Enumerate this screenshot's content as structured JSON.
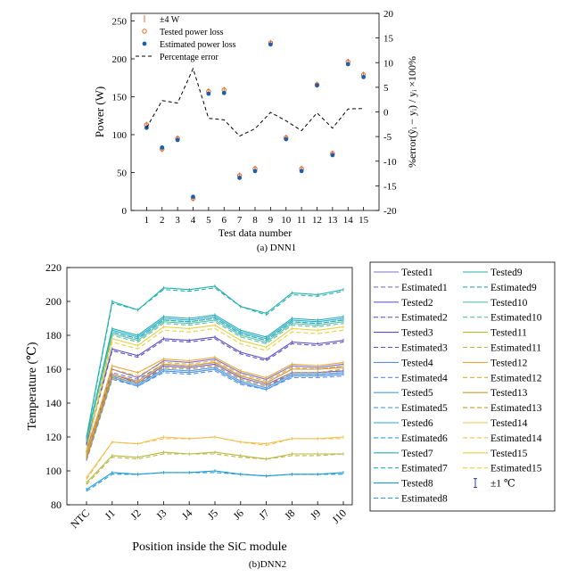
{
  "chart_data": [
    {
      "type": "scatter",
      "caption": "(a) DNN1",
      "xlabel": "Test data number",
      "ylabel": "Power (W)",
      "y2label": "%error(ŷᵢ − yᵢ) / yᵢ ×100%",
      "x": [
        1,
        2,
        3,
        4,
        5,
        6,
        7,
        8,
        9,
        10,
        11,
        12,
        13,
        14,
        15
      ],
      "xlim": [
        0,
        16
      ],
      "ylim": [
        0,
        260
      ],
      "y2lim": [
        -20,
        20
      ],
      "yticks": [
        0,
        50,
        100,
        150,
        200,
        250
      ],
      "y2ticks": [
        -20,
        -15,
        -10,
        -5,
        0,
        5,
        10,
        15,
        20
      ],
      "legend": {
        "placement": "top-left",
        "entries": [
          "±4 W",
          "Tested power loss",
          "Estimated power loss",
          "Percentage error"
        ]
      },
      "errorbar": 4,
      "series": [
        {
          "name": "Tested power loss",
          "values": [
            113,
            81,
            95,
            16,
            157,
            159,
            46,
            55,
            221,
            96,
            55,
            166,
            75,
            196,
            179
          ]
        },
        {
          "name": "Estimated power loss",
          "values": [
            109,
            83,
            93,
            18,
            154,
            155,
            43,
            52,
            219,
            94,
            52,
            165,
            73,
            193,
            176
          ]
        },
        {
          "name": "Percentage error",
          "axis": "right",
          "values": [
            -3.2,
            2.3,
            1.8,
            8.8,
            -1.3,
            -1.6,
            -4.9,
            -3.4,
            -0.1,
            -1.8,
            -3.8,
            -0.2,
            -3.3,
            0.6,
            0.7
          ]
        }
      ]
    },
    {
      "type": "line",
      "caption": "(b)DNN2",
      "xlabel": "Position inside the SiC module",
      "ylabel": "Temperature (℃)",
      "categories": [
        "NTC",
        "J1",
        "J2",
        "J3",
        "J4",
        "J5",
        "J6",
        "J7",
        "J8",
        "J9",
        "J10"
      ],
      "ylim": [
        80,
        220
      ],
      "yticks": [
        80,
        100,
        120,
        140,
        160,
        180,
        200,
        220
      ],
      "errorbar_label": "±1 ℃",
      "series": [
        {
          "name": "Tested1",
          "color": "#7b6fd0",
          "values": [
            112,
            160,
            155,
            165,
            164,
            166,
            158,
            154,
            162,
            161,
            163
          ]
        },
        {
          "name": "Estimated1",
          "color": "#7b6fd0",
          "values": [
            111,
            158,
            154,
            163,
            162,
            164,
            156,
            152,
            160,
            160,
            162
          ]
        },
        {
          "name": "Tested2",
          "color": "#6a5cc8",
          "values": [
            110,
            157,
            152,
            162,
            161,
            163,
            155,
            151,
            158,
            158,
            159
          ]
        },
        {
          "name": "Estimated2",
          "color": "#6a5cc8",
          "values": [
            109,
            156,
            151,
            161,
            160,
            162,
            154,
            150,
            157,
            157,
            158
          ]
        },
        {
          "name": "Tested3",
          "color": "#5a4fc0",
          "values": [
            116,
            172,
            168,
            178,
            177,
            179,
            170,
            166,
            176,
            175,
            177
          ]
        },
        {
          "name": "Estimated3",
          "color": "#5a4fc0",
          "values": [
            115,
            171,
            167,
            177,
            176,
            178,
            169,
            165,
            175,
            174,
            176
          ]
        },
        {
          "name": "Tested4",
          "color": "#5b8ee0",
          "values": [
            107,
            155,
            150,
            159,
            158,
            160,
            152,
            148,
            156,
            156,
            157
          ]
        },
        {
          "name": "Estimated4",
          "color": "#5b8ee0",
          "values": [
            106,
            154,
            150,
            158,
            157,
            159,
            151,
            148,
            155,
            155,
            156
          ]
        },
        {
          "name": "Tested5",
          "color": "#4a9be8",
          "values": [
            108,
            156,
            151,
            160,
            159,
            161,
            153,
            149,
            157,
            157,
            158
          ]
        },
        {
          "name": "Estimated5",
          "color": "#4a9be8",
          "values": [
            107,
            155,
            150,
            159,
            158,
            160,
            152,
            148,
            156,
            156,
            157
          ]
        },
        {
          "name": "Tested6",
          "color": "#2aa6e0",
          "values": [
            118,
            183,
            179,
            190,
            189,
            191,
            182,
            178,
            189,
            188,
            190
          ]
        },
        {
          "name": "Estimated6",
          "color": "#2aa6e0",
          "values": [
            117,
            182,
            178,
            189,
            188,
            190,
            181,
            177,
            188,
            187,
            189
          ]
        },
        {
          "name": "Tested7",
          "color": "#1fb0b0",
          "values": [
            120,
            200,
            195,
            208,
            207,
            209,
            197,
            193,
            205,
            204,
            207
          ]
        },
        {
          "name": "Estimated7",
          "color": "#1fb0b0",
          "values": [
            119,
            199,
            195,
            207,
            206,
            208,
            197,
            192,
            204,
            203,
            206
          ]
        },
        {
          "name": "Tested8",
          "color": "#1a9ad6",
          "values": [
            89,
            99,
            98,
            99,
            99,
            100,
            98,
            97,
            98,
            98,
            99
          ]
        },
        {
          "name": "Estimated8",
          "color": "#1a9ad6",
          "values": [
            88,
            98,
            98,
            99,
            99,
            99,
            98,
            97,
            98,
            98,
            98
          ]
        },
        {
          "name": "Tested9",
          "color": "#20b0a0",
          "values": [
            119,
            184,
            180,
            191,
            190,
            192,
            183,
            179,
            190,
            189,
            191
          ]
        },
        {
          "name": "Estimated9",
          "color": "#20b0a0",
          "values": [
            118,
            182,
            178,
            189,
            188,
            190,
            181,
            177,
            188,
            187,
            189
          ]
        },
        {
          "name": "Tested10",
          "color": "#5cc0a8",
          "values": [
            118,
            181,
            177,
            188,
            187,
            189,
            180,
            176,
            187,
            186,
            188
          ]
        },
        {
          "name": "Estimated10",
          "color": "#5cc0a8",
          "values": [
            117,
            180,
            176,
            187,
            186,
            188,
            179,
            175,
            186,
            185,
            187
          ]
        },
        {
          "name": "Tested11",
          "color": "#b8b840",
          "values": [
            93,
            109,
            108,
            111,
            110,
            111,
            109,
            107,
            110,
            110,
            110
          ]
        },
        {
          "name": "Estimated11",
          "color": "#b8b840",
          "values": [
            92,
            108,
            107,
            110,
            110,
            110,
            108,
            107,
            109,
            109,
            110
          ]
        },
        {
          "name": "Tested12",
          "color": "#e8a830",
          "values": [
            110,
            162,
            158,
            166,
            165,
            167,
            159,
            155,
            163,
            162,
            164
          ]
        },
        {
          "name": "Estimated12",
          "color": "#e8a830",
          "values": [
            109,
            160,
            156,
            164,
            163,
            165,
            157,
            153,
            161,
            160,
            162
          ]
        },
        {
          "name": "Tested13",
          "color": "#d09828",
          "values": [
            108,
            157,
            153,
            163,
            162,
            164,
            156,
            152,
            160,
            160,
            161
          ]
        },
        {
          "name": "Estimated13",
          "color": "#d09828",
          "values": [
            107,
            155,
            152,
            161,
            160,
            162,
            154,
            150,
            158,
            158,
            160
          ]
        },
        {
          "name": "Tested14",
          "color": "#f0c050",
          "values": [
            96,
            117,
            116,
            120,
            119,
            120,
            117,
            116,
            119,
            119,
            120
          ]
        },
        {
          "name": "Estimated14",
          "color": "#f0c050",
          "values": [
            95,
            117,
            116,
            119,
            119,
            120,
            117,
            115,
            119,
            119,
            119
          ]
        },
        {
          "name": "Tested15",
          "color": "#e8d040",
          "values": [
            113,
            178,
            174,
            185,
            184,
            186,
            177,
            173,
            184,
            183,
            185
          ]
        },
        {
          "name": "Estimated15",
          "color": "#e8d040",
          "values": [
            112,
            176,
            172,
            183,
            182,
            184,
            175,
            171,
            182,
            181,
            183
          ]
        }
      ]
    }
  ]
}
